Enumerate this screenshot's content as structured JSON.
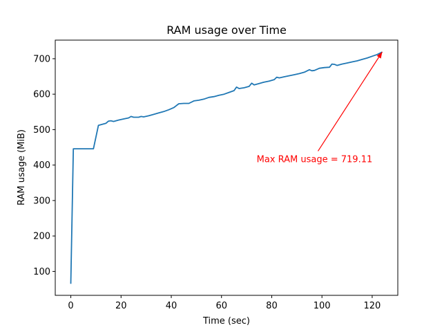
{
  "chart_data": {
    "type": "line",
    "title": "RAM usage over Time",
    "xlabel": "Time (sec)",
    "ylabel": "RAM usage (MiB)",
    "xlim": [
      -6.2,
      130.2
    ],
    "ylim": [
      32.5,
      752.5
    ],
    "xticks": [
      0,
      20,
      40,
      60,
      80,
      100,
      120
    ],
    "yticks": [
      100,
      200,
      300,
      400,
      500,
      600,
      700
    ],
    "grid": false,
    "series": [
      {
        "color": "#1f77b4",
        "x": [
          0,
          1,
          3,
          5,
          7,
          9,
          11,
          13,
          14,
          15,
          16,
          17,
          19,
          21,
          23,
          24,
          25,
          27,
          28,
          29,
          31,
          33,
          35,
          37,
          39,
          41,
          43,
          45,
          47,
          49,
          51,
          53,
          55,
          57,
          59,
          61,
          63,
          65,
          66,
          67,
          69,
          71,
          72,
          73,
          75,
          77,
          79,
          81,
          82,
          83,
          85,
          87,
          89,
          91,
          93,
          95,
          96,
          97,
          99,
          101,
          103,
          104,
          105,
          106,
          108,
          110,
          112,
          114,
          116,
          118,
          120,
          122,
          124
        ],
        "y": [
          65,
          446,
          446,
          446,
          446,
          446,
          512,
          516,
          518,
          524,
          525,
          523,
          527,
          530,
          533,
          537,
          535,
          535,
          537,
          536,
          539,
          543,
          547,
          551,
          556,
          562,
          573,
          574,
          574,
          581,
          583,
          586,
          591,
          593,
          597,
          600,
          605,
          610,
          620,
          616,
          618,
          622,
          631,
          626,
          630,
          634,
          637,
          641,
          648,
          646,
          649,
          652,
          655,
          658,
          662,
          669,
          666,
          667,
          673,
          675,
          676,
          685,
          684,
          681,
          685,
          688,
          691,
          694,
          698,
          702,
          707,
          712,
          719
        ]
      }
    ],
    "annotation": {
      "text": "Max RAM usage = 719.11",
      "color": "#ff0000",
      "xy": [
        124,
        719.11
      ],
      "xytext": [
        74,
        418
      ]
    }
  }
}
